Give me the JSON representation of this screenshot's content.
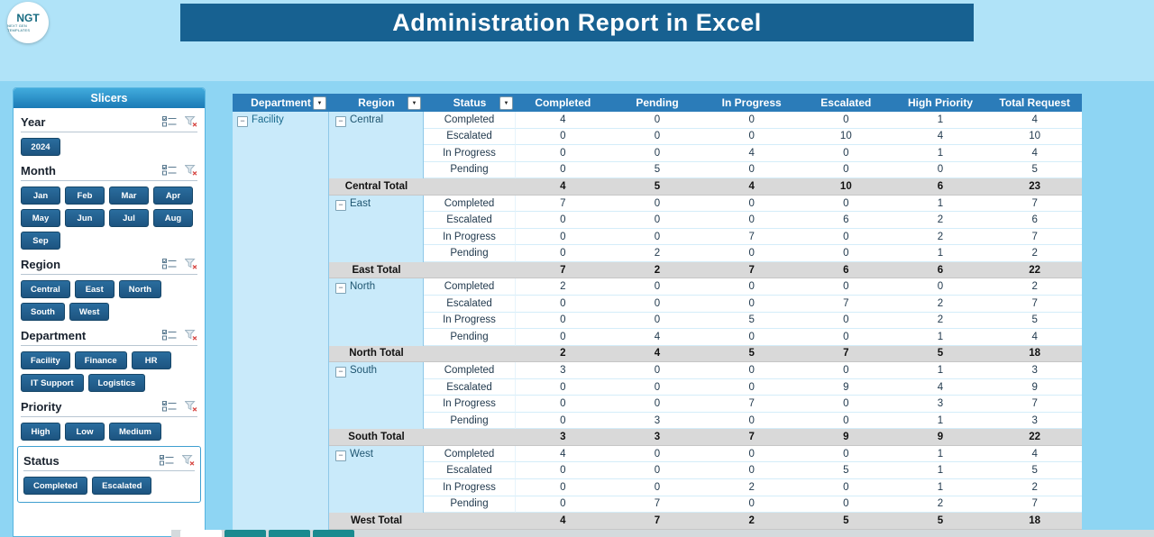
{
  "title": "Administration Report in Excel",
  "logo": {
    "text": "NGT",
    "subtext": "NEXT GEN TEMPLATES"
  },
  "slicers": {
    "panel_title": "Slicers",
    "groups": [
      {
        "label": "Year",
        "buttons": [
          "2024"
        ],
        "compact": true,
        "boxed": false
      },
      {
        "label": "Month",
        "buttons": [
          "Jan",
          "Feb",
          "Mar",
          "Apr",
          "May",
          "Jun",
          "Jul",
          "Aug",
          "Sep"
        ],
        "compact": true,
        "boxed": false
      },
      {
        "label": "Region",
        "buttons": [
          "Central",
          "East",
          "North",
          "South",
          "West"
        ],
        "compact": false,
        "boxed": false
      },
      {
        "label": "Department",
        "buttons": [
          "Facility",
          "Finance",
          "HR",
          "IT Support",
          "Logistics"
        ],
        "compact": false,
        "boxed": false
      },
      {
        "label": "Priority",
        "buttons": [
          "High",
          "Low",
          "Medium"
        ],
        "compact": false,
        "boxed": false
      },
      {
        "label": "Status",
        "buttons": [
          "Completed",
          "Escalated"
        ],
        "compact": false,
        "boxed": true
      }
    ]
  },
  "table": {
    "headers": [
      "Department",
      "Region",
      "Status",
      "Completed",
      "Pending",
      "In Progress",
      "Escalated",
      "High Priority",
      "Total Request"
    ],
    "department": "Facility",
    "regions": [
      {
        "name": "Central",
        "rows": [
          {
            "status": "Completed",
            "values": [
              4,
              0,
              0,
              0,
              1,
              4
            ]
          },
          {
            "status": "Escalated",
            "values": [
              0,
              0,
              0,
              10,
              4,
              10
            ]
          },
          {
            "status": "In Progress",
            "values": [
              0,
              0,
              4,
              0,
              1,
              4
            ]
          },
          {
            "status": "Pending",
            "values": [
              0,
              5,
              0,
              0,
              0,
              5
            ]
          }
        ],
        "total_label": "Central Total",
        "total_values": [
          4,
          5,
          4,
          10,
          6,
          23
        ]
      },
      {
        "name": "East",
        "rows": [
          {
            "status": "Completed",
            "values": [
              7,
              0,
              0,
              0,
              1,
              7
            ]
          },
          {
            "status": "Escalated",
            "values": [
              0,
              0,
              0,
              6,
              2,
              6
            ]
          },
          {
            "status": "In Progress",
            "values": [
              0,
              0,
              7,
              0,
              2,
              7
            ]
          },
          {
            "status": "Pending",
            "values": [
              0,
              2,
              0,
              0,
              1,
              2
            ]
          }
        ],
        "total_label": "East Total",
        "total_values": [
          7,
          2,
          7,
          6,
          6,
          22
        ]
      },
      {
        "name": "North",
        "rows": [
          {
            "status": "Completed",
            "values": [
              2,
              0,
              0,
              0,
              0,
              2
            ]
          },
          {
            "status": "Escalated",
            "values": [
              0,
              0,
              0,
              7,
              2,
              7
            ]
          },
          {
            "status": "In Progress",
            "values": [
              0,
              0,
              5,
              0,
              2,
              5
            ]
          },
          {
            "status": "Pending",
            "values": [
              0,
              4,
              0,
              0,
              1,
              4
            ]
          }
        ],
        "total_label": "North Total",
        "total_values": [
          2,
          4,
          5,
          7,
          5,
          18
        ]
      },
      {
        "name": "South",
        "rows": [
          {
            "status": "Completed",
            "values": [
              3,
              0,
              0,
              0,
              1,
              3
            ]
          },
          {
            "status": "Escalated",
            "values": [
              0,
              0,
              0,
              9,
              4,
              9
            ]
          },
          {
            "status": "In Progress",
            "values": [
              0,
              0,
              7,
              0,
              3,
              7
            ]
          },
          {
            "status": "Pending",
            "values": [
              0,
              3,
              0,
              0,
              1,
              3
            ]
          }
        ],
        "total_label": "South Total",
        "total_values": [
          3,
          3,
          7,
          9,
          9,
          22
        ]
      },
      {
        "name": "West",
        "rows": [
          {
            "status": "Completed",
            "values": [
              4,
              0,
              0,
              0,
              1,
              4
            ]
          },
          {
            "status": "Escalated",
            "values": [
              0,
              0,
              0,
              5,
              1,
              5
            ]
          },
          {
            "status": "In Progress",
            "values": [
              0,
              0,
              2,
              0,
              1,
              2
            ]
          },
          {
            "status": "Pending",
            "values": [
              0,
              7,
              0,
              0,
              2,
              7
            ]
          }
        ],
        "total_label": "West Total",
        "total_values": [
          4,
          7,
          2,
          5,
          5,
          18
        ]
      }
    ]
  },
  "colors": {
    "title_bar": "#176191",
    "table_header": "#2b7cb9",
    "group_cell_blue": "#c9eafa",
    "total_gray": "#d9d9d9",
    "slicer_button": "#1d5480",
    "background": "#8ed5f3"
  }
}
